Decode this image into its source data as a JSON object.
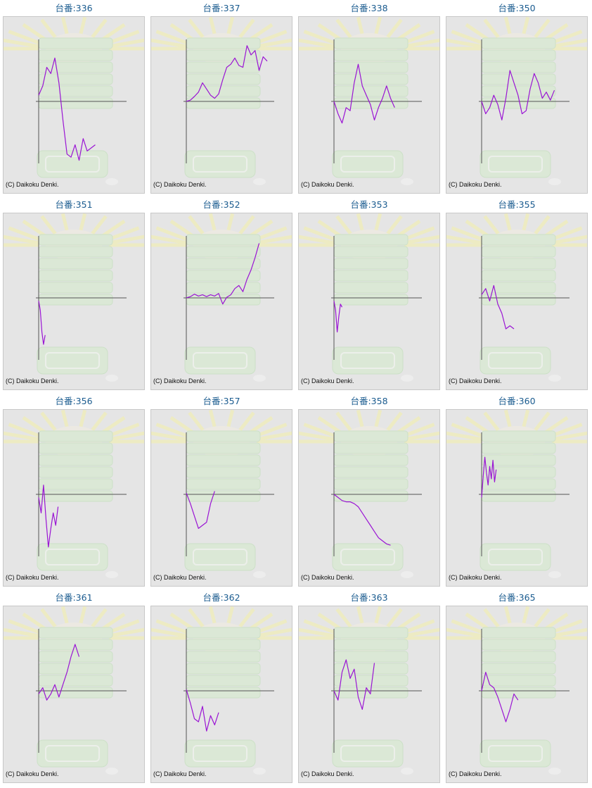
{
  "copyright": "(C) Daikoku Denki.",
  "colors": {
    "title": "#1a5b8f",
    "line": "#9a14d4",
    "axis": "#555555",
    "background": "#e5e5e5"
  },
  "chart_data": [
    {
      "type": "line",
      "title": "台番:336",
      "x": [
        0,
        5,
        10,
        15,
        20,
        25,
        30,
        35,
        40,
        45,
        50,
        55,
        60,
        65,
        70
      ],
      "y": [
        0.1,
        0.25,
        0.55,
        0.45,
        0.7,
        0.3,
        -0.3,
        -0.85,
        -0.9,
        -0.7,
        -0.95,
        -0.6,
        -0.8,
        -0.75,
        -0.7
      ]
    },
    {
      "type": "line",
      "title": "台番:337",
      "x": [
        0,
        5,
        10,
        15,
        20,
        25,
        30,
        35,
        40,
        45,
        50,
        55,
        60,
        65,
        70,
        75,
        80,
        85,
        90,
        95,
        100
      ],
      "y": [
        0,
        0.02,
        0.08,
        0.15,
        0.3,
        0.2,
        0.1,
        0.05,
        0.12,
        0.35,
        0.55,
        0.6,
        0.7,
        0.58,
        0.55,
        0.9,
        0.75,
        0.82,
        0.5,
        0.72,
        0.65
      ]
    },
    {
      "type": "line",
      "title": "台番:338",
      "x": [
        0,
        5,
        10,
        15,
        20,
        25,
        30,
        35,
        40,
        45,
        50,
        55,
        60,
        65,
        70,
        75
      ],
      "y": [
        0,
        -0.2,
        -0.35,
        -0.1,
        -0.15,
        0.3,
        0.6,
        0.25,
        0.1,
        -0.05,
        -0.3,
        -0.1,
        0.05,
        0.25,
        0.05,
        -0.1
      ]
    },
    {
      "type": "line",
      "title": "台番:350",
      "x": [
        0,
        5,
        10,
        15,
        20,
        25,
        30,
        35,
        40,
        45,
        50,
        55,
        60,
        65,
        70,
        75,
        80,
        85,
        90
      ],
      "y": [
        0,
        -0.2,
        -0.1,
        0.1,
        -0.05,
        -0.3,
        0.05,
        0.5,
        0.3,
        0.1,
        -0.2,
        -0.15,
        0.2,
        0.45,
        0.3,
        0.05,
        0.15,
        0.02,
        0.18
      ]
    },
    {
      "type": "line",
      "title": "台番:351",
      "x": [
        0,
        2,
        4,
        6,
        8
      ],
      "y": [
        -0.05,
        -0.2,
        -0.55,
        -0.75,
        -0.6
      ]
    },
    {
      "type": "line",
      "title": "台番:352",
      "x": [
        0,
        5,
        10,
        15,
        20,
        25,
        30,
        35,
        40,
        45,
        50,
        55,
        60,
        65,
        70,
        75,
        80,
        85,
        90
      ],
      "y": [
        0,
        0.02,
        0.06,
        0.03,
        0.05,
        0.02,
        0.05,
        0.03,
        0.07,
        -0.1,
        0.01,
        0.05,
        0.15,
        0.2,
        0.1,
        0.3,
        0.45,
        0.65,
        0.88
      ]
    },
    {
      "type": "line",
      "title": "台番:353",
      "x": [
        0,
        2,
        4,
        6,
        8,
        10
      ],
      "y": [
        -0.05,
        -0.2,
        -0.55,
        -0.3,
        -0.1,
        -0.15
      ]
    },
    {
      "type": "line",
      "title": "台番:355",
      "x": [
        0,
        5,
        10,
        15,
        20,
        25,
        30,
        35,
        40
      ],
      "y": [
        0.05,
        0.15,
        -0.05,
        0.2,
        -0.1,
        -0.25,
        -0.5,
        -0.45,
        -0.5
      ]
    },
    {
      "type": "line",
      "title": "台番:356",
      "x": [
        0,
        3,
        6,
        9,
        12,
        15,
        18,
        21,
        24
      ],
      "y": [
        -0.05,
        -0.3,
        0.15,
        -0.4,
        -0.85,
        -0.55,
        -0.3,
        -0.5,
        -0.2
      ]
    },
    {
      "type": "line",
      "title": "台番:357",
      "x": [
        0,
        5,
        10,
        15,
        20,
        25,
        30,
        35
      ],
      "y": [
        0.02,
        -0.15,
        -0.35,
        -0.55,
        -0.5,
        -0.45,
        -0.15,
        0.05
      ]
    },
    {
      "type": "line",
      "title": "台番:358",
      "x": [
        0,
        5,
        10,
        15,
        20,
        25,
        30,
        35,
        40,
        45,
        50,
        55,
        60,
        65,
        70
      ],
      "y": [
        0,
        -0.05,
        -0.1,
        -0.12,
        -0.12,
        -0.15,
        -0.2,
        -0.3,
        -0.4,
        -0.5,
        -0.6,
        -0.7,
        -0.75,
        -0.8,
        -0.82
      ]
    },
    {
      "type": "line",
      "title": "台番:360",
      "x": [
        0,
        2,
        4,
        6,
        8,
        10,
        12,
        14,
        16,
        18
      ],
      "y": [
        -0.05,
        0.3,
        0.6,
        0.35,
        0.15,
        0.45,
        0.25,
        0.55,
        0.2,
        0.4
      ]
    },
    {
      "type": "line",
      "title": "台番:361",
      "x": [
        0,
        5,
        10,
        15,
        20,
        25,
        30,
        35,
        40,
        45,
        50
      ],
      "y": [
        -0.05,
        0.05,
        -0.15,
        -0.05,
        0.1,
        -0.1,
        0.1,
        0.3,
        0.55,
        0.75,
        0.55
      ]
    },
    {
      "type": "line",
      "title": "台番:362",
      "x": [
        0,
        5,
        10,
        15,
        20,
        25,
        30,
        35,
        40
      ],
      "y": [
        0.02,
        -0.2,
        -0.45,
        -0.5,
        -0.25,
        -0.65,
        -0.4,
        -0.55,
        -0.35
      ]
    },
    {
      "type": "line",
      "title": "台番:363",
      "x": [
        0,
        5,
        10,
        15,
        20,
        25,
        30,
        35,
        40,
        45,
        50
      ],
      "y": [
        0,
        -0.15,
        0.3,
        0.5,
        0.2,
        0.35,
        -0.1,
        -0.3,
        0.05,
        -0.05,
        0.45
      ]
    },
    {
      "type": "line",
      "title": "台番:365",
      "x": [
        0,
        5,
        10,
        15,
        20,
        25,
        30,
        35,
        40,
        45
      ],
      "y": [
        0,
        0.3,
        0.1,
        0.05,
        -0.1,
        -0.3,
        -0.5,
        -0.3,
        -0.05,
        -0.15
      ]
    }
  ]
}
